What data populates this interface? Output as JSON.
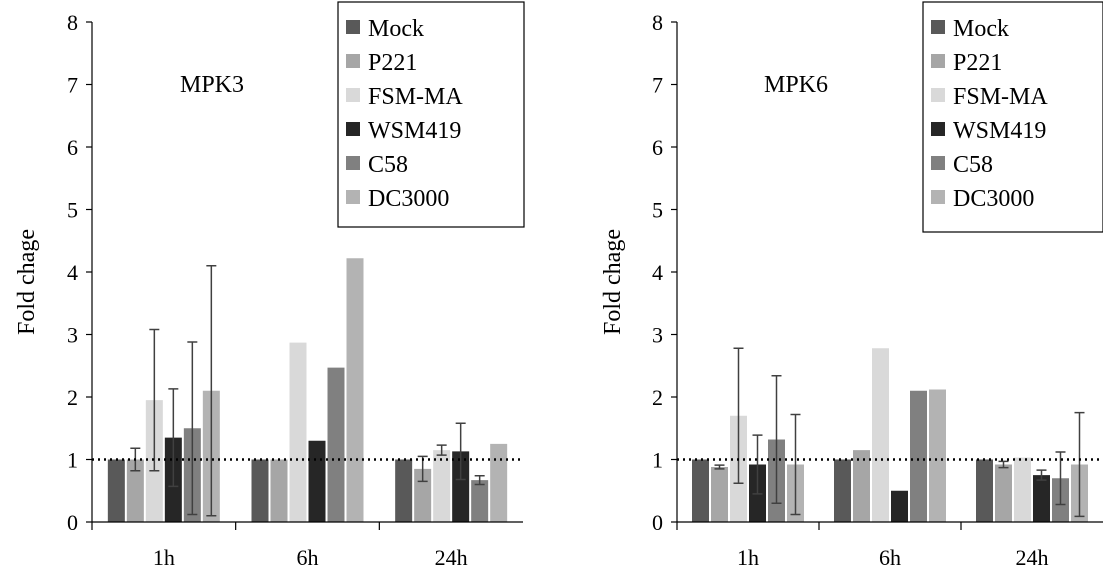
{
  "chart_data": [
    {
      "type": "bar",
      "title": "MPK3",
      "ylabel": "Fold chage",
      "xlabel": "",
      "ylim": [
        0,
        8
      ],
      "yticks": [
        0,
        1,
        2,
        3,
        4,
        5,
        6,
        7,
        8
      ],
      "categories": [
        "1h",
        "6h",
        "24h"
      ],
      "reference_line": 1,
      "legend_position": "top-right",
      "series": [
        {
          "name": "Mock",
          "color": "#595959",
          "values": [
            1.0,
            1.0,
            1.0
          ],
          "errors": [
            0,
            0,
            0
          ]
        },
        {
          "name": "P221",
          "color": "#a6a6a6",
          "values": [
            1.0,
            1.0,
            0.85
          ],
          "errors": [
            0.18,
            0,
            0.2
          ]
        },
        {
          "name": "FSM-MA",
          "color": "#d9d9d9",
          "values": [
            1.95,
            2.87,
            1.15
          ],
          "errors": [
            1.13,
            0,
            0.08
          ]
        },
        {
          "name": "WSM419",
          "color": "#262626",
          "values": [
            1.35,
            1.3,
            1.13
          ],
          "errors": [
            0.78,
            0,
            0.45
          ]
        },
        {
          "name": "C58",
          "color": "#808080",
          "values": [
            1.5,
            2.47,
            0.67
          ],
          "errors": [
            1.38,
            0,
            0.07
          ]
        },
        {
          "name": "DC3000",
          "color": "#b3b3b3",
          "values": [
            2.1,
            4.22,
            1.25
          ],
          "errors": [
            2.0,
            0,
            0
          ]
        }
      ]
    },
    {
      "type": "bar",
      "title": "MPK6",
      "ylabel": "Fold chage",
      "xlabel": "",
      "ylim": [
        0,
        8
      ],
      "yticks": [
        0,
        1,
        2,
        3,
        4,
        5,
        6,
        7,
        8
      ],
      "categories": [
        "1h",
        "6h",
        "24h"
      ],
      "reference_line": 1,
      "legend_position": "top-right",
      "series": [
        {
          "name": "Mock",
          "color": "#595959",
          "values": [
            1.0,
            1.0,
            1.0
          ],
          "errors": [
            0,
            0,
            0
          ]
        },
        {
          "name": "P221",
          "color": "#a6a6a6",
          "values": [
            0.88,
            1.15,
            0.92
          ],
          "errors": [
            0.03,
            0,
            0.05
          ]
        },
        {
          "name": "FSM-MA",
          "color": "#d9d9d9",
          "values": [
            1.7,
            2.78,
            1.03
          ],
          "errors": [
            1.08,
            0,
            0
          ]
        },
        {
          "name": "WSM419",
          "color": "#262626",
          "values": [
            0.92,
            0.5,
            0.75
          ],
          "errors": [
            0.47,
            0,
            0.08
          ]
        },
        {
          "name": "C58",
          "color": "#808080",
          "values": [
            1.32,
            2.1,
            0.7
          ],
          "errors": [
            1.02,
            0,
            0.42
          ]
        },
        {
          "name": "DC3000",
          "color": "#b3b3b3",
          "values": [
            0.92,
            2.12,
            0.92
          ],
          "errors": [
            0.8,
            0,
            0.83
          ]
        }
      ]
    }
  ]
}
